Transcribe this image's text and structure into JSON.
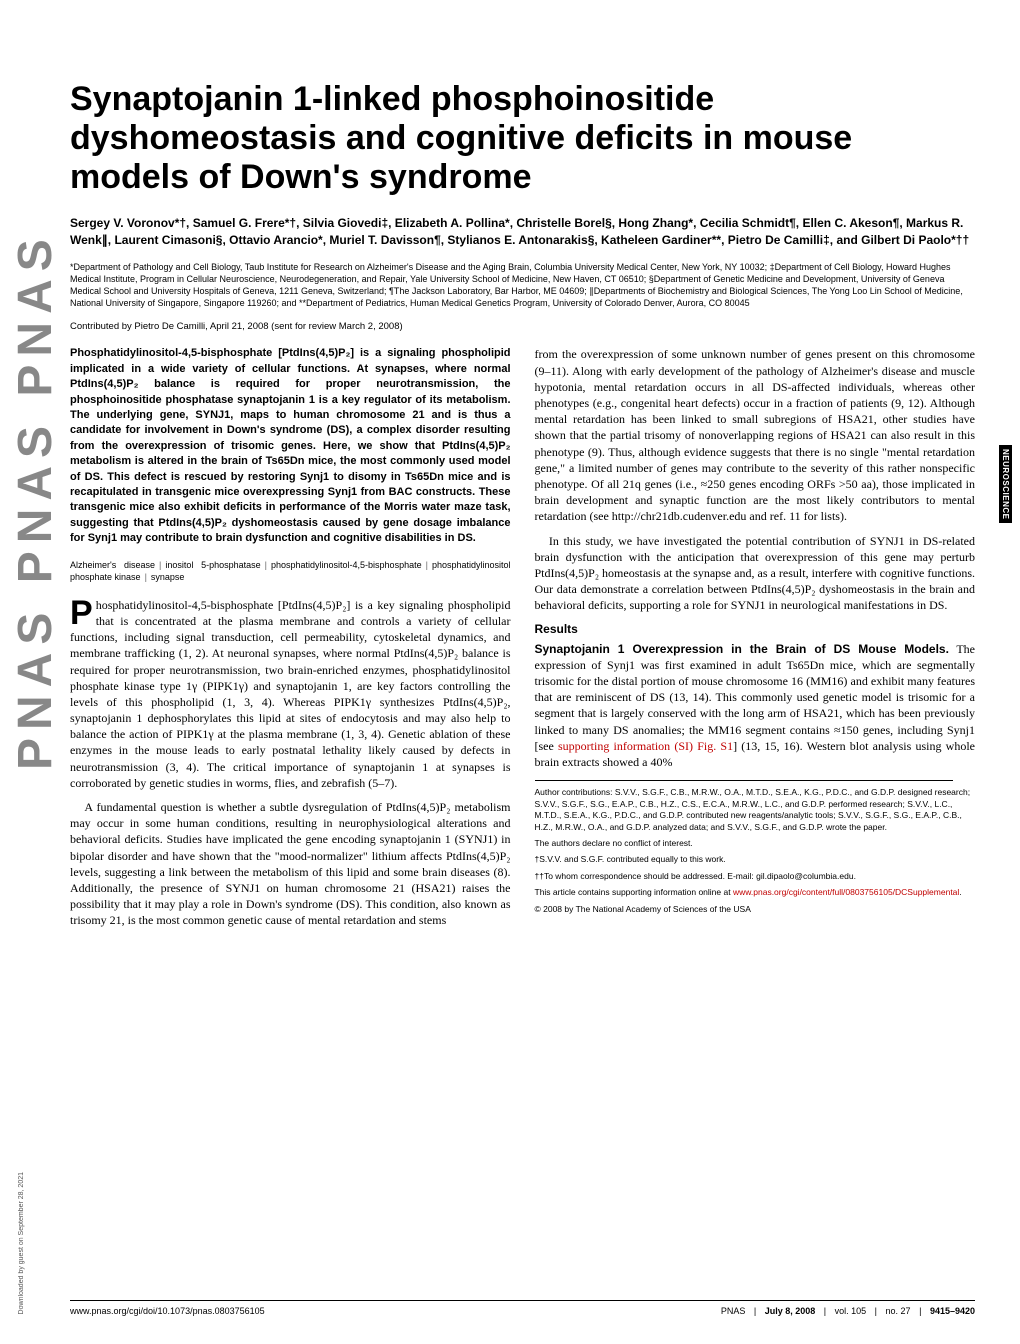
{
  "logo": "PNAS PNAS PNAS",
  "download_note": "Downloaded by guest on September 28, 2021",
  "side_tab": "NEUROSCIENCE",
  "title": "Synaptojanin 1-linked phosphoinositide dyshomeostasis and cognitive deficits in mouse models of Down's syndrome",
  "authors": "Sergey V. Voronov*†, Samuel G. Frere*†, Silvia Giovedi‡, Elizabeth A. Pollina*, Christelle Borel§, Hong Zhang*, Cecilia Schmidt¶, Ellen C. Akeson¶, Markus R. Wenk∥, Laurent Cimasoni§, Ottavio Arancio*, Muriel T. Davisson¶, Stylianos E. Antonarakis§, Katheleen Gardiner**, Pietro De Camilli‡, and Gilbert Di Paolo*††",
  "affiliations": "*Department of Pathology and Cell Biology, Taub Institute for Research on Alzheimer's Disease and the Aging Brain, Columbia University Medical Center, New York, NY 10032; ‡Department of Cell Biology, Howard Hughes Medical Institute, Program in Cellular Neuroscience, Neurodegeneration, and Repair, Yale University School of Medicine, New Haven, CT 06510; §Department of Genetic Medicine and Development, University of Geneva Medical School and University Hospitals of Geneva, 1211 Geneva, Switzerland; ¶The Jackson Laboratory, Bar Harbor, ME 04609; ∥Departments of Biochemistry and Biological Sciences, The Yong Loo Lin School of Medicine, National University of Singapore, Singapore 119260; and **Department of Pediatrics, Human Medical Genetics Program, University of Colorado Denver, Aurora, CO 80045",
  "contributed": "Contributed by Pietro De Camilli, April 21, 2008 (sent for review March 2, 2008)",
  "abstract": "Phosphatidylinositol-4,5-bisphosphate [PtdIns(4,5)P₂] is a signaling phospholipid implicated in a wide variety of cellular functions. At synapses, where normal PtdIns(4,5)P₂ balance is required for proper neurotransmission, the phosphoinositide phosphatase synaptojanin 1 is a key regulator of its metabolism. The underlying gene, SYNJ1, maps to human chromosome 21 and is thus a candidate for involvement in Down's syndrome (DS), a complex disorder resulting from the overexpression of trisomic genes. Here, we show that PtdIns(4,5)P₂ metabolism is altered in the brain of Ts65Dn mice, the most commonly used model of DS. This defect is rescued by restoring Synj1 to disomy in Ts65Dn mice and is recapitulated in transgenic mice overexpressing Synj1 from BAC constructs. These transgenic mice also exhibit deficits in performance of the Morris water maze task, suggesting that PtdIns(4,5)P₂ dyshomeostasis caused by gene dosage imbalance for Synj1 may contribute to brain dysfunction and cognitive disabilities in DS.",
  "keywords": [
    "Alzheimer's disease",
    "inositol 5-phosphatase",
    "phosphatidylinositol-4,5-bisphosphate",
    "phosphatidylinositol phosphate kinase",
    "synapse"
  ],
  "body": {
    "p1_first_letter": "P",
    "p1": "hosphatidylinositol-4,5-bisphosphate [PtdIns(4,5)P₂] is a key signaling phospholipid that is concentrated at the plasma membrane and controls a variety of cellular functions, including signal transduction, cell permeability, cytoskeletal dynamics, and membrane trafficking (1, 2). At neuronal synapses, where normal PtdIns(4,5)P₂ balance is required for proper neurotransmission, two brain-enriched enzymes, phosphatidylinositol phosphate kinase type 1γ (PIPK1γ) and synaptojanin 1, are key factors controlling the levels of this phospholipid (1, 3, 4). Whereas PIPK1γ synthesizes PtdIns(4,5)P₂, synaptojanin 1 dephosphorylates this lipid at sites of endocytosis and may also help to balance the action of PIPK1γ at the plasma membrane (1, 3, 4). Genetic ablation of these enzymes in the mouse leads to early postnatal lethality likely caused by defects in neurotransmission (3, 4). The critical importance of synaptojanin 1 at synapses is corroborated by genetic studies in worms, flies, and zebrafish (5–7).",
    "p2": "A fundamental question is whether a subtle dysregulation of PtdIns(4,5)P₂ metabolism may occur in some human conditions, resulting in neurophysiological alterations and behavioral deficits. Studies have implicated the gene encoding synaptojanin 1 (SYNJ1) in bipolar disorder and have shown that the \"mood-normalizer\" lithium affects PtdIns(4,5)P₂ levels, suggesting a link between the metabolism of this lipid and some brain diseases (8). Additionally, the presence of SYNJ1 on human chromosome 21 (HSA21) raises the possibility that it may play a role in Down's syndrome (DS). This condition, also known as trisomy 21, is the most common genetic cause of mental retardation and stems",
    "p3": "from the overexpression of some unknown number of genes present on this chromosome (9–11). Along with early development of the pathology of Alzheimer's disease and muscle hypotonia, mental retardation occurs in all DS-affected individuals, whereas other phenotypes (e.g., congenital heart defects) occur in a fraction of patients (9, 12). Although mental retardation has been linked to small subregions of HSA21, other studies have shown that the partial trisomy of nonoverlapping regions of HSA21 can also result in this phenotype (9). Thus, although evidence suggests that there is no single \"mental retardation gene,\" a limited number of genes may contribute to the severity of this rather nonspecific phenotype. Of all 21q genes (i.e., ≈250 genes encoding ORFs >50 aa), those implicated in brain development and synaptic function are the most likely contributors to mental retardation (see http://chr21db.cudenver.edu and ref. 11 for lists).",
    "p4": "In this study, we have investigated the potential contribution of SYNJ1 in DS-related brain dysfunction with the anticipation that overexpression of this gene may perturb PtdIns(4,5)P₂ homeostasis at the synapse and, as a result, interfere with cognitive functions. Our data demonstrate a correlation between PtdIns(4,5)P₂ dyshomeostasis in the brain and behavioral deficits, supporting a role for SYNJ1 in neurological manifestations in DS.",
    "results_head": "Results",
    "results_runin": "Synaptojanin 1 Overexpression in the Brain of DS Mouse Models.",
    "p5_a": " The expression of Synj1 was first examined in adult Ts65Dn mice, which are segmentally trisomic for the distal portion of mouse chromosome 16 (MM16) and exhibit many features that are reminiscent of DS (13, 14). This commonly used genetic model is trisomic for a segment that is largely conserved with the long arm of HSA21, which has been previously linked to many DS anomalies; the MM16 segment contains ≈150 genes, including Synj1 [see ",
    "p5_link": "supporting information (SI) Fig. S1",
    "p5_b": "] (13, 15, 16). Western blot analysis using whole brain extracts showed a 40%"
  },
  "author_contrib": {
    "contributions": "Author contributions: S.V.V., S.G.F., C.B., M.R.W., O.A., M.T.D., S.E.A., K.G., P.D.C., and G.D.P. designed research; S.V.V., S.G.F., S.G., E.A.P., C.B., H.Z., C.S., E.C.A., M.R.W., L.C., and G.D.P. performed research; S.V.V., L.C., M.T.D., S.E.A., K.G., P.D.C., and G.D.P. contributed new reagents/analytic tools; S.V.V., S.G.F., S.G., E.A.P., C.B., H.Z., M.R.W., O.A., and G.D.P. analyzed data; and S.V.V., S.G.F., and G.D.P. wrote the paper.",
    "conflict": "The authors declare no conflict of interest.",
    "equal": "†S.V.V. and S.G.F. contributed equally to this work.",
    "correspondence": "††To whom correspondence should be addressed. E-mail: gil.dipaolo@columbia.edu.",
    "si_a": "This article contains supporting information online at ",
    "si_link": "www.pnas.org/cgi/content/full/0803756105/DCSupplemental",
    "si_b": ".",
    "copyright": "© 2008 by The National Academy of Sciences of the USA"
  },
  "footer": {
    "doi": "www.pnas.org/cgi/doi/10.1073/pnas.0803756105",
    "journal": "PNAS",
    "date": "July 8, 2008",
    "vol": "vol. 105",
    "no": "no. 27",
    "pages": "9415–9420"
  },
  "styles": {
    "title_fontsize": 34,
    "authors_fontsize": 12,
    "affil_fontsize": 9,
    "abstract_fontsize": 11,
    "body_fontsize": 12,
    "footer_fontsize": 9,
    "link_color": "#c00000",
    "text_color": "#000000",
    "background_color": "#ffffff",
    "logo_color": "#888888"
  }
}
